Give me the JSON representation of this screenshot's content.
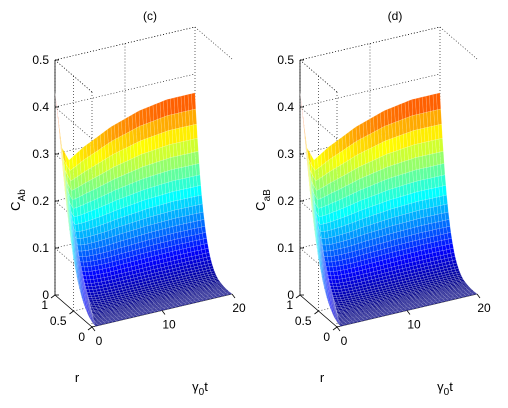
{
  "chart_data": [
    {
      "type": "surface",
      "panel_label": "(c)",
      "zlabel_main": "C",
      "zlabel_sub": "Ab",
      "xlabel_main": "γ",
      "xlabel_sub": "0",
      "xlabel_tail": "t",
      "ylabel": "r",
      "z_ticks": [
        "0",
        "0.1",
        "0.2",
        "0.3",
        "0.4",
        "0.5"
      ],
      "t_ticks": [
        "0",
        "10",
        "20"
      ],
      "r_ticks": [
        "0",
        "0.5",
        "1"
      ],
      "zlim": [
        0,
        0.5
      ],
      "tlim": [
        0,
        20
      ],
      "rlim": [
        0,
        1
      ],
      "colormap": "jet",
      "grid": true,
      "profile_t0_vs_r": {
        "r": [
          0,
          0.2,
          0.4,
          0.6,
          0.8,
          1.0
        ],
        "z": [
          0.03,
          0.08,
          0.14,
          0.22,
          0.32,
          0.43
        ]
      },
      "profile_r1_vs_t": {
        "t": [
          0,
          1,
          2,
          4,
          8,
          12,
          16,
          20
        ],
        "z": [
          0.43,
          0.31,
          0.28,
          0.3,
          0.33,
          0.35,
          0.36,
          0.36
        ]
      }
    },
    {
      "type": "surface",
      "panel_label": "(d)",
      "zlabel_main": "C",
      "zlabel_sub": "aB",
      "xlabel_main": "γ",
      "xlabel_sub": "0",
      "xlabel_tail": "t",
      "ylabel": "r",
      "z_ticks": [
        "0",
        "0.1",
        "0.2",
        "0.3",
        "0.4",
        "0.5"
      ],
      "t_ticks": [
        "0",
        "10",
        "20"
      ],
      "r_ticks": [
        "0",
        "0.5",
        "1"
      ],
      "zlim": [
        0,
        0.5
      ],
      "tlim": [
        0,
        20
      ],
      "rlim": [
        0,
        1
      ],
      "colormap": "jet",
      "grid": true,
      "profile_t0_vs_r": {
        "r": [
          0,
          0.2,
          0.4,
          0.6,
          0.8,
          1.0
        ],
        "z": [
          0.03,
          0.08,
          0.14,
          0.22,
          0.32,
          0.43
        ]
      },
      "profile_r1_vs_t": {
        "t": [
          0,
          1,
          2,
          4,
          8,
          12,
          16,
          20
        ],
        "z": [
          0.43,
          0.31,
          0.28,
          0.3,
          0.33,
          0.35,
          0.36,
          0.36
        ]
      }
    }
  ]
}
